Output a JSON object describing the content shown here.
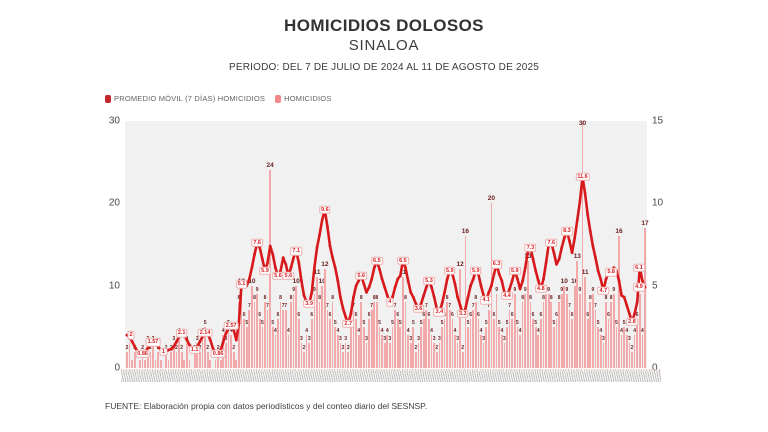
{
  "header": {
    "title": "HOMICIDIOS DOLOSOS",
    "subtitle": "SINALOA",
    "period": "PERIODO: DEL 7 DE JULIO DE 2024 AL 11 DE AGOSTO DE 2025"
  },
  "legend": {
    "series1": "PROMEDIO MÓVIL (7 DÍAS) HOMICIDIOS",
    "series2": "HOMICIDIOS"
  },
  "footer": {
    "source": "FUENTE: Elaboración propia con datos periodísticos y del conteo diario del SESNSP."
  },
  "colors": {
    "line": "#d7191c",
    "bar": "#f3a9a9",
    "bar_label": "#6b2020",
    "axis_text": "#4a4a4a",
    "legend_swatch_line": "#c1272d",
    "legend_swatch_bar": "#f4898d"
  },
  "chart_data": {
    "type": "bar",
    "subtype": "bar+line dual axis",
    "title": "HOMICIDIOS DOLOSOS SINALOA",
    "x_start": "7 DE JULIO DE 2024",
    "x_end": "11 DE AGOSTO DE 2025",
    "x_tick_labels_illegible": true,
    "left_axis": {
      "series": "HOMICIDIOS (diario, barras)",
      "ticks": [
        0,
        10,
        20,
        30
      ],
      "range": [
        0,
        30
      ]
    },
    "right_axis": {
      "series": "PROMEDIO MÓVIL (7 DÍAS) HOMICIDIOS (línea)",
      "ticks": [
        0,
        5,
        10,
        15
      ],
      "range": [
        0,
        15
      ]
    },
    "notable_values": {
      "max_daily": 30,
      "max_avg": 11.6,
      "last_daily": 17,
      "last_avg": 4.9,
      "other_peaks": [
        24,
        20,
        16,
        16,
        17
      ]
    },
    "daily": [
      2,
      3,
      1,
      2,
      0,
      1,
      2,
      1,
      3,
      2,
      3,
      1,
      2,
      1,
      0,
      2,
      1,
      2,
      3,
      2,
      4,
      2,
      1,
      3,
      1,
      0,
      2,
      3,
      2,
      4,
      5,
      2,
      1,
      0,
      1,
      2,
      1,
      4,
      3,
      5,
      4,
      2,
      1,
      8,
      10,
      6,
      5,
      7,
      10,
      8,
      9,
      6,
      5,
      8,
      7,
      24,
      5,
      4,
      6,
      8,
      7,
      7,
      4,
      8,
      9,
      10,
      6,
      3,
      2,
      4,
      3,
      6,
      9,
      11,
      8,
      10,
      12,
      7,
      6,
      8,
      5,
      4,
      3,
      2,
      3,
      2,
      5,
      7,
      6,
      4,
      8,
      5,
      3,
      6,
      7,
      8,
      8,
      5,
      4,
      3,
      4,
      3,
      5,
      7,
      6,
      5,
      11,
      8,
      4,
      3,
      5,
      2,
      3,
      5,
      6,
      7,
      6,
      4,
      3,
      2,
      3,
      5,
      6,
      8,
      7,
      6,
      4,
      3,
      12,
      2,
      16,
      5,
      6,
      7,
      8,
      6,
      4,
      3,
      5,
      7,
      20,
      6,
      9,
      5,
      4,
      3,
      5,
      7,
      6,
      9,
      5,
      4,
      8,
      9,
      13,
      8,
      6,
      5,
      4,
      6,
      8,
      9,
      9,
      8,
      5,
      6,
      8,
      9,
      10,
      9,
      7,
      6,
      10,
      13,
      9,
      30,
      11,
      6,
      8,
      9,
      7,
      5,
      4,
      3,
      8,
      6,
      8,
      9,
      5,
      16,
      4,
      5,
      4,
      3,
      2,
      4,
      6,
      9,
      4,
      17
    ],
    "moving_avg": [
      2.0,
      1.9,
      1.6,
      1.3,
      1.0,
      0.9,
      0.86,
      1.0,
      1.2,
      1.4,
      1.57,
      1.5,
      1.3,
      1.1,
      1.0,
      1.0,
      1.1,
      1.14,
      1.3,
      1.6,
      1.9,
      2.1,
      2.0,
      1.7,
      1.4,
      1.2,
      1.1,
      1.3,
      1.6,
      1.9,
      2.14,
      2.1,
      1.7,
      1.2,
      0.9,
      0.86,
      1.1,
      1.6,
      2.1,
      2.4,
      2.57,
      2.3,
      1.7,
      2.7,
      5.1,
      5.0,
      5.0,
      5.4,
      6.1,
      6.9,
      7.6,
      7.3,
      6.6,
      5.9,
      6.4,
      7.4,
      6.9,
      6.1,
      5.6,
      5.9,
      6.7,
      6.3,
      5.6,
      6.1,
      6.7,
      7.1,
      6.4,
      5.3,
      4.4,
      4.0,
      3.9,
      4.6,
      6.1,
      7.3,
      8.1,
      9.0,
      9.6,
      8.6,
      7.4,
      6.7,
      6.1,
      5.3,
      4.3,
      3.6,
      3.1,
      2.7,
      3.3,
      4.3,
      5.0,
      5.3,
      5.6,
      5.1,
      4.6,
      4.9,
      5.4,
      6.1,
      6.5,
      6.0,
      5.4,
      4.9,
      4.4,
      4.0,
      4.3,
      4.9,
      5.4,
      5.6,
      6.5,
      6.1,
      5.3,
      4.6,
      4.3,
      3.9,
      3.6,
      3.9,
      4.4,
      4.9,
      5.3,
      4.9,
      4.3,
      3.6,
      3.4,
      3.9,
      4.6,
      5.4,
      5.9,
      5.7,
      5.1,
      4.3,
      3.8,
      3.3,
      3.6,
      4.3,
      5.0,
      5.4,
      5.9,
      5.7,
      5.0,
      4.4,
      4.1,
      4.6,
      5.0,
      5.7,
      6.3,
      5.7,
      5.3,
      4.6,
      4.4,
      4.8,
      5.3,
      5.9,
      5.4,
      4.8,
      5.3,
      6.1,
      7.1,
      7.3,
      6.6,
      5.9,
      5.3,
      4.8,
      5.4,
      6.4,
      7.5,
      7.6,
      7.0,
      6.3,
      6.6,
      7.3,
      7.9,
      8.3,
      7.7,
      7.0,
      7.9,
      9.0,
      10.1,
      11.6,
      10.6,
      9.3,
      8.3,
      7.4,
      6.7,
      5.9,
      5.4,
      4.7,
      5.4,
      5.8,
      5.8,
      6.1,
      5.9,
      5.3,
      4.4,
      4.3,
      3.8,
      3.3,
      2.8,
      3.3,
      4.0,
      6.1,
      5.3,
      4.9
    ]
  }
}
